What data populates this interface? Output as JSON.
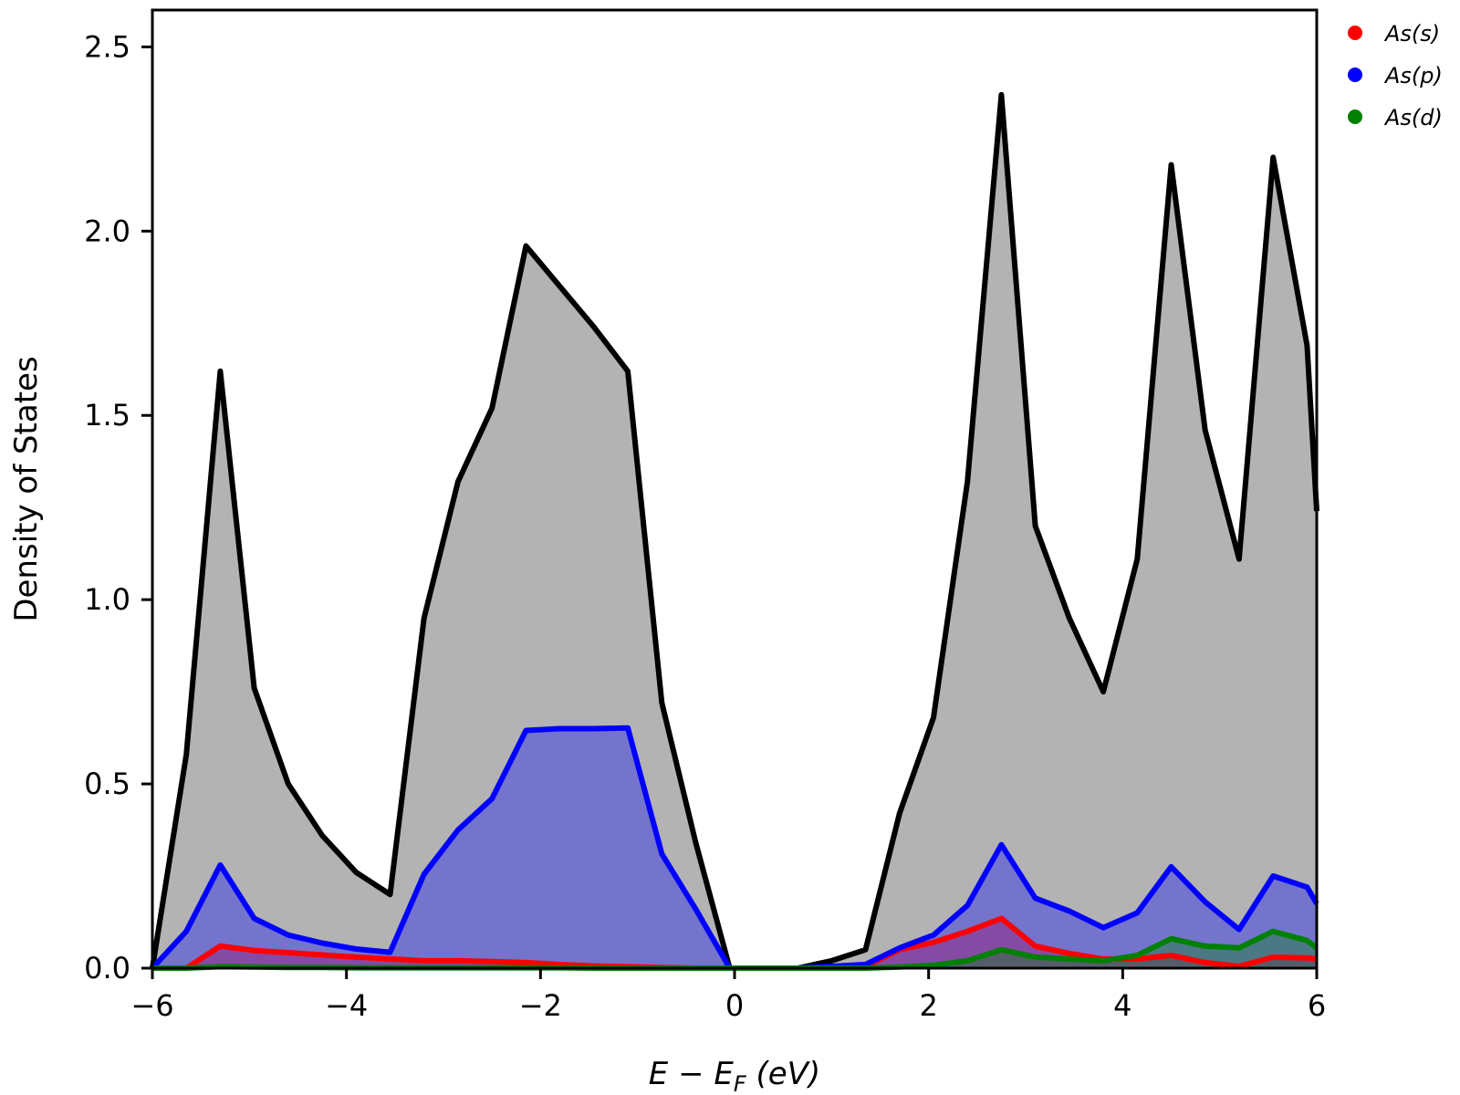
{
  "chart_data": {
    "type": "area",
    "xlabel": "E − E",
    "xlabel_sub": "F",
    "xlabel_unit": " (eV)",
    "ylabel": "Density of States",
    "xlim": [
      -6,
      6
    ],
    "ylim": [
      0,
      2.6
    ],
    "xticks": [
      -6,
      -4,
      -2,
      0,
      2,
      4,
      6
    ],
    "xtick_labels": [
      "−6",
      "−4",
      "−2",
      "0",
      "2",
      "4",
      "6"
    ],
    "yticks": [
      0.0,
      0.5,
      1.0,
      1.5,
      2.0,
      2.5
    ],
    "ytick_labels": [
      "0.0",
      "0.5",
      "1.0",
      "1.5",
      "2.0",
      "2.5"
    ],
    "grid": false,
    "legend_position": "top-right",
    "x": [
      -6.0,
      -5.65,
      -5.3,
      -4.95,
      -4.6,
      -4.25,
      -3.9,
      -3.55,
      -3.2,
      -2.85,
      -2.5,
      -2.15,
      -1.8,
      -1.45,
      -1.1,
      -0.75,
      -0.4,
      -0.05,
      0.3,
      0.65,
      1.0,
      1.35,
      1.7,
      2.05,
      2.4,
      2.75,
      3.1,
      3.45,
      3.8,
      4.15,
      4.5,
      4.85,
      5.2,
      5.55,
      5.9,
      6.0
    ],
    "total": {
      "color": "#000000",
      "fill": "#b3b3b3",
      "values": [
        0.0,
        0.58,
        1.62,
        0.76,
        0.5,
        0.36,
        0.26,
        0.2,
        0.95,
        1.32,
        1.52,
        1.96,
        1.85,
        1.74,
        1.62,
        0.72,
        0.34,
        0.0,
        0.0,
        0.0,
        0.02,
        0.05,
        0.42,
        0.68,
        1.32,
        2.37,
        1.2,
        0.95,
        0.75,
        1.11,
        2.18,
        1.46,
        1.11,
        2.2,
        1.69,
        1.24
      ]
    },
    "series": [
      {
        "name": "As(s)",
        "color": "#ff0000",
        "fill": "rgba(255,0,0,0.35)",
        "values": [
          0.0,
          0.0,
          0.06,
          0.048,
          0.042,
          0.036,
          0.03,
          0.025,
          0.02,
          0.02,
          0.018,
          0.015,
          0.01,
          0.006,
          0.004,
          0.002,
          0.0,
          0.0,
          0.0,
          0.0,
          0.0,
          0.005,
          0.05,
          0.07,
          0.1,
          0.135,
          0.06,
          0.04,
          0.025,
          0.025,
          0.035,
          0.015,
          0.005,
          0.03,
          0.028,
          0.025
        ]
      },
      {
        "name": "As(p)",
        "color": "#0000ff",
        "fill": "rgba(0,0,255,0.35)",
        "values": [
          0.0,
          0.1,
          0.28,
          0.135,
          0.09,
          0.068,
          0.052,
          0.043,
          0.255,
          0.375,
          0.46,
          0.645,
          0.65,
          0.65,
          0.652,
          0.31,
          0.16,
          0.0,
          0.0,
          0.0,
          0.005,
          0.01,
          0.055,
          0.09,
          0.17,
          0.335,
          0.19,
          0.155,
          0.11,
          0.15,
          0.275,
          0.18,
          0.105,
          0.25,
          0.22,
          0.175
        ]
      },
      {
        "name": "As(d)",
        "color": "#008000",
        "fill": "rgba(0,128,0,0.35)",
        "values": [
          0.0,
          0.0,
          0.004,
          0.003,
          0.002,
          0.002,
          0.001,
          0.001,
          0.001,
          0.001,
          0.001,
          0.001,
          0.001,
          0.0,
          0.0,
          0.0,
          0.0,
          0.0,
          0.0,
          0.0,
          0.0,
          0.0,
          0.003,
          0.008,
          0.02,
          0.05,
          0.03,
          0.025,
          0.02,
          0.035,
          0.08,
          0.06,
          0.055,
          0.1,
          0.075,
          0.055
        ]
      }
    ]
  }
}
